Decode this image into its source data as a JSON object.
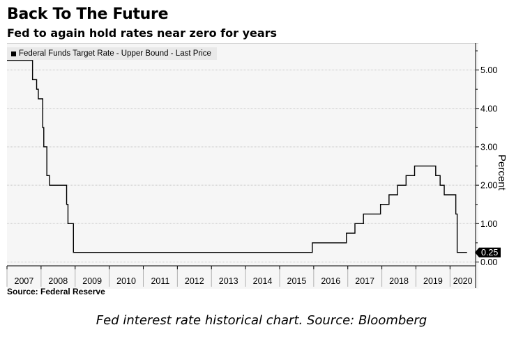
{
  "title": "Back To The Future",
  "subtitle": "Fed to again hold rates near zero for years",
  "source": "Source: Federal Reserve",
  "caption": "Fed interest rate historical chart. Source: Bloomberg",
  "chart_data": {
    "type": "line",
    "ylabel": "Percent",
    "ylim": [
      -0.1,
      5.7
    ],
    "y_ticks": [
      "0.00",
      "1.00",
      "2.00",
      "3.00",
      "4.00",
      "5.00"
    ],
    "xlim": [
      2007.0,
      2020.75
    ],
    "x_tick_labels": [
      "2007",
      "2008",
      "2009",
      "2010",
      "2011",
      "2012",
      "2013",
      "2014",
      "2015",
      "2016",
      "2017",
      "2018",
      "2019",
      "2020"
    ],
    "grid": "horizontal",
    "legend_position": "top-left",
    "series": [
      {
        "name": "Federal Funds Target Rate - Upper Bound - Last Price",
        "color": "#000000",
        "step": true,
        "x": [
          2007.0,
          2007.6,
          2007.75,
          2007.87,
          2007.92,
          2007.96,
          2008.05,
          2008.08,
          2008.17,
          2008.25,
          2008.33,
          2008.75,
          2008.79,
          2008.83,
          2008.95,
          2015.96,
          2016.96,
          2017.21,
          2017.46,
          2017.96,
          2018.21,
          2018.46,
          2018.71,
          2018.96,
          2019.58,
          2019.71,
          2019.83,
          2020.17,
          2020.21,
          2020.5
        ],
        "y": [
          5.25,
          5.25,
          4.75,
          4.5,
          4.25,
          4.25,
          3.5,
          3.0,
          2.25,
          2.0,
          2.0,
          1.5,
          1.0,
          1.0,
          0.25,
          0.5,
          0.75,
          1.0,
          1.25,
          1.5,
          1.75,
          2.0,
          2.25,
          2.5,
          2.25,
          2.0,
          1.75,
          1.25,
          0.25,
          0.25
        ]
      }
    ],
    "last_value_label": "0.25"
  }
}
